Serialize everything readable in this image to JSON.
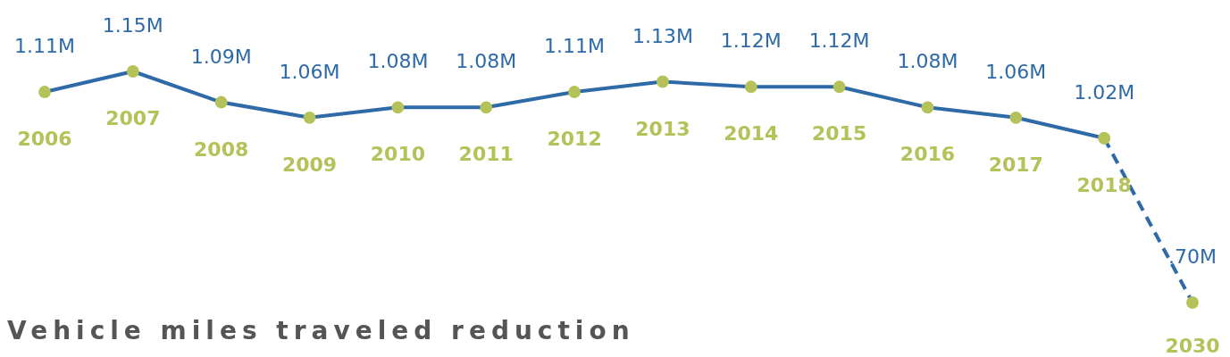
{
  "chart_data": {
    "type": "line",
    "title": "Vehicle miles traveled reduction",
    "categories": [
      "2006",
      "2007",
      "2008",
      "2009",
      "2010",
      "2011",
      "2012",
      "2013",
      "2014",
      "2015",
      "2016",
      "2017",
      "2018",
      "2030"
    ],
    "marker": "circle",
    "grid": false,
    "tick_labels": "x",
    "series": [
      {
        "color": "#2e6aa8",
        "line_style": "solid",
        "values": [
          1.11,
          1.15,
          1.09,
          1.06,
          1.08,
          1.08,
          1.11,
          1.13,
          1.12,
          1.12,
          1.08,
          1.06,
          1.02,
          null
        ],
        "value_labels": [
          "1.11M",
          "1.15M",
          "1.09M",
          "1.06M",
          "1.08M",
          "1.08M",
          "1.11M",
          "1.13M",
          "1.12M",
          "1.12M",
          "1.08M",
          "1.06M",
          "1.02M",
          null
        ]
      },
      {
        "color": "#2e6aa8",
        "line_style": "dashed",
        "values": [
          null,
          null,
          null,
          null,
          null,
          null,
          null,
          null,
          null,
          null,
          null,
          null,
          1.02,
          0.7
        ],
        "value_labels": [
          null,
          null,
          null,
          null,
          null,
          null,
          null,
          null,
          null,
          null,
          null,
          null,
          null,
          ".70M"
        ]
      }
    ]
  }
}
